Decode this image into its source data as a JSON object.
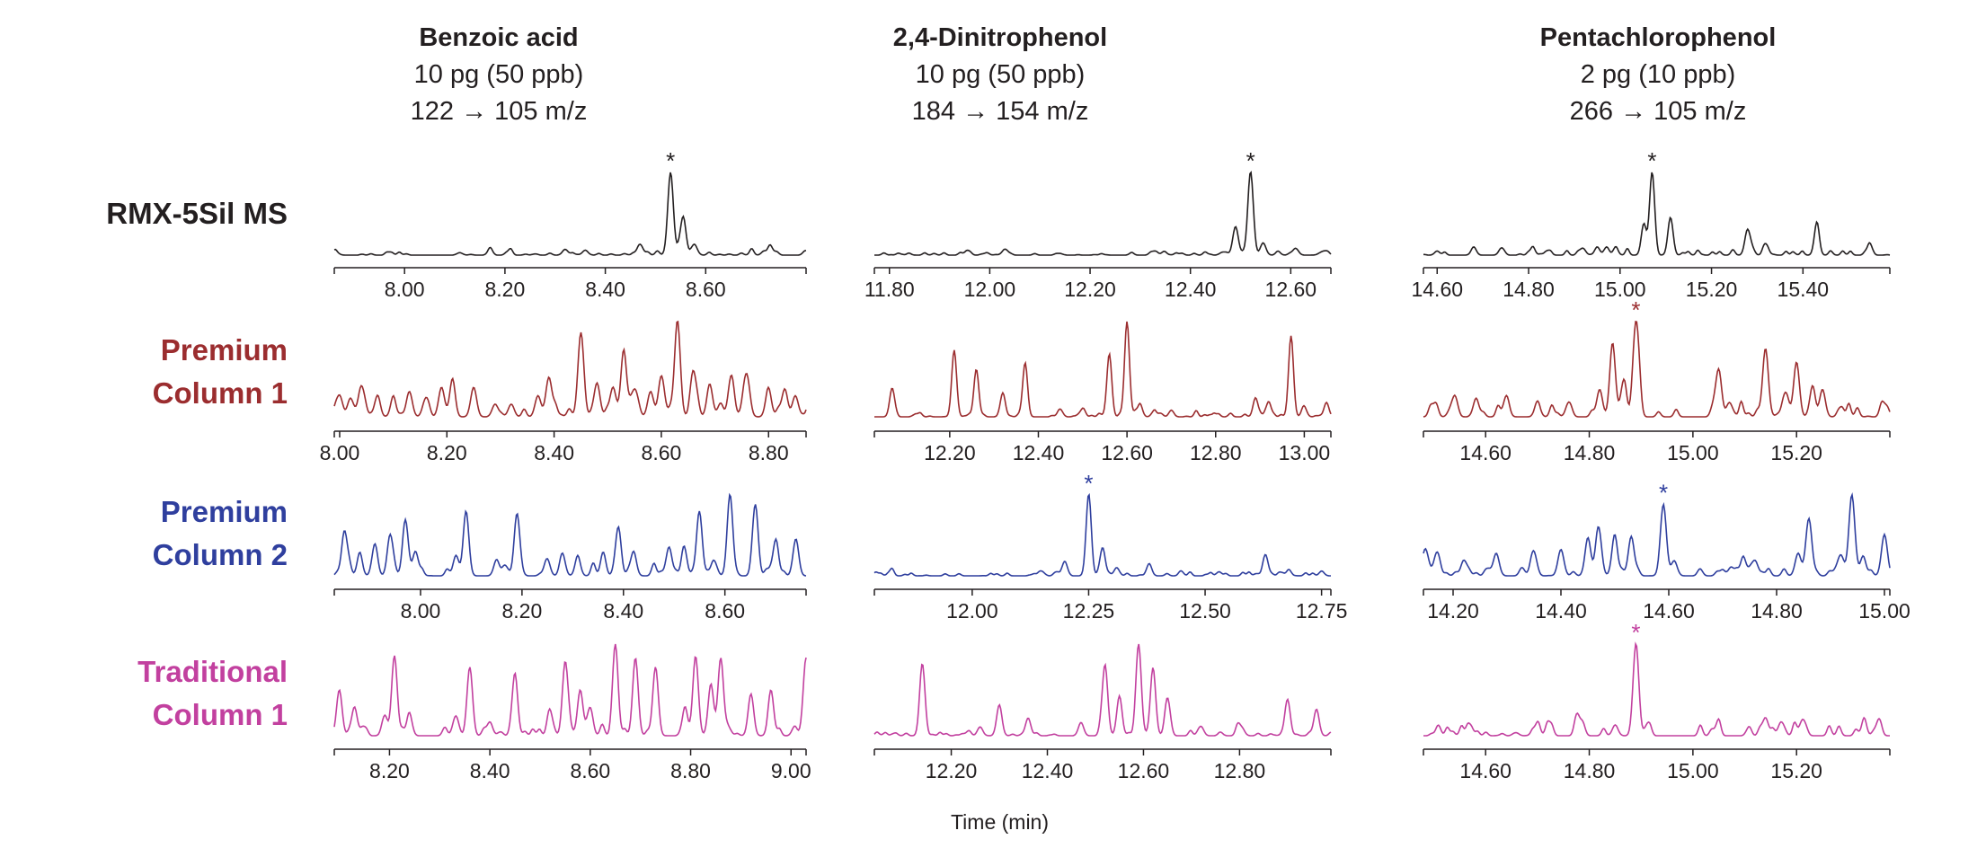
{
  "chart_data": {
    "type": "line",
    "title": "",
    "xlabel": "Time (min)",
    "columns": [
      {
        "compound": "Benzoic acid",
        "amount": "10 pg (50 ppb)",
        "transition": "122 → 105 m/z"
      },
      {
        "compound": "2,4-Dinitrophenol",
        "amount": "10 pg (50 ppb)",
        "transition": "184 → 154 m/z"
      },
      {
        "compound": "Pentachlorophenol",
        "amount": "2 pg (10 ppb)",
        "transition": "266 → 105 m/z"
      }
    ],
    "rows": [
      {
        "label_lines": [
          "RMX-5Sil MS"
        ],
        "color": "#231f20"
      },
      {
        "label_lines": [
          "Premium",
          "Column 1"
        ],
        "color": "#9b2d2f"
      },
      {
        "label_lines": [
          "Premium",
          "Column 2"
        ],
        "color": "#2f3f9e"
      },
      {
        "label_lines": [
          "Traditional",
          "Column 1"
        ],
        "color": "#c2409f"
      }
    ],
    "target_marker": "*",
    "panels": [
      [
        {
          "xlim": [
            7.86,
            8.8
          ],
          "ticks": [
            "8.00",
            "8.20",
            "8.40",
            "8.60"
          ],
          "marked_peak": 8.53,
          "noise": 0.02,
          "peaks": [
            [
              8.53,
              1.0
            ],
            [
              8.555,
              0.45
            ],
            [
              8.578,
              0.12
            ],
            [
              8.47,
              0.12
            ],
            [
              8.36,
              0.06
            ],
            [
              8.32,
              0.07
            ],
            [
              8.73,
              0.07
            ],
            [
              8.11,
              0.03
            ],
            [
              8.17,
              0.03
            ],
            [
              8.8,
              0.05
            ]
          ]
        },
        {
          "xlim": [
            11.77,
            12.68
          ],
          "ticks": [
            "11.80",
            "12.00",
            "12.20",
            "12.40",
            "12.60"
          ],
          "marked_peak": 12.52,
          "noise": 0.015,
          "peaks": [
            [
              12.52,
              1.0
            ],
            [
              12.49,
              0.35
            ],
            [
              12.545,
              0.15
            ],
            [
              12.61,
              0.08
            ],
            [
              12.03,
              0.07
            ],
            [
              12.33,
              0.05
            ],
            [
              12.66,
              0.03
            ],
            [
              12.14,
              0.02
            ]
          ]
        },
        {
          "xlim": [
            14.57,
            15.59
          ],
          "ticks": [
            "14.60",
            "14.80",
            "15.00",
            "15.20",
            "15.40"
          ],
          "marked_peak": 15.07,
          "noise": 0.03,
          "peaks": [
            [
              15.07,
              1.0
            ],
            [
              15.052,
              0.38
            ],
            [
              15.11,
              0.45
            ],
            [
              15.28,
              0.25
            ],
            [
              15.32,
              0.12
            ],
            [
              15.43,
              0.35
            ],
            [
              14.6,
              0.05
            ],
            [
              14.68,
              0.1
            ],
            [
              14.74,
              0.08
            ],
            [
              14.95,
              0.1
            ],
            [
              14.97,
              0.09
            ],
            [
              14.99,
              0.08
            ],
            [
              14.81,
              0.05
            ],
            [
              14.84,
              0.05
            ]
          ]
        }
      ],
      [
        {
          "xlim": [
            7.99,
            8.87
          ],
          "ticks": [
            "8.00",
            "8.20",
            "8.40",
            "8.60",
            "8.80"
          ],
          "marked_peak": null,
          "noise": 0.05,
          "peaks": [
            [
              8.0,
              0.25
            ],
            [
              8.02,
              0.2
            ],
            [
              8.04,
              0.35
            ],
            [
              8.07,
              0.2
            ],
            [
              8.1,
              0.15
            ],
            [
              8.13,
              0.3
            ],
            [
              8.16,
              0.2
            ],
            [
              8.19,
              0.35
            ],
            [
              8.21,
              0.3
            ],
            [
              8.25,
              0.35
            ],
            [
              8.29,
              0.15
            ],
            [
              8.32,
              0.15
            ],
            [
              8.37,
              0.25
            ],
            [
              8.39,
              0.45
            ],
            [
              8.45,
              1.0
            ],
            [
              8.48,
              0.4
            ],
            [
              8.51,
              0.35
            ],
            [
              8.53,
              0.7
            ],
            [
              8.55,
              0.3
            ],
            [
              8.58,
              0.3
            ],
            [
              8.6,
              0.45
            ],
            [
              8.63,
              1.0
            ],
            [
              8.66,
              0.4
            ],
            [
              8.69,
              0.3
            ],
            [
              8.73,
              0.45
            ],
            [
              8.76,
              0.45
            ],
            [
              8.8,
              0.3
            ],
            [
              8.83,
              0.3
            ],
            [
              8.85,
              0.25
            ],
            [
              8.88,
              0.4
            ],
            [
              8.91,
              0.6
            ]
          ]
        },
        {
          "xlim": [
            12.03,
            13.06
          ],
          "ticks": [
            "12.20",
            "12.40",
            "12.60",
            "12.80",
            "13.00"
          ],
          "marked_peak": null,
          "noise": 0.02,
          "peaks": [
            [
              12.07,
              0.3
            ],
            [
              12.21,
              0.7
            ],
            [
              12.26,
              0.5
            ],
            [
              12.32,
              0.25
            ],
            [
              12.37,
              0.55
            ],
            [
              12.45,
              0.07
            ],
            [
              12.5,
              0.08
            ],
            [
              12.56,
              0.65
            ],
            [
              12.6,
              1.0
            ],
            [
              12.63,
              0.1
            ],
            [
              12.7,
              0.07
            ],
            [
              12.89,
              0.2
            ],
            [
              12.92,
              0.1
            ],
            [
              12.97,
              0.85
            ],
            [
              13.0,
              0.1
            ],
            [
              13.05,
              0.15
            ]
          ]
        },
        {
          "xlim": [
            14.48,
            15.38
          ],
          "ticks": [
            "14.60",
            "14.80",
            "15.00",
            "15.20"
          ],
          "marked_peak": 14.89,
          "noise": 0.05,
          "peaks": [
            [
              14.5,
              0.1
            ],
            [
              14.54,
              0.15
            ],
            [
              14.58,
              0.12
            ],
            [
              14.64,
              0.2
            ],
            [
              14.7,
              0.15
            ],
            [
              14.76,
              0.15
            ],
            [
              14.82,
              0.3
            ],
            [
              14.845,
              0.75
            ],
            [
              14.865,
              0.3
            ],
            [
              14.89,
              1.0
            ],
            [
              15.05,
              0.5
            ],
            [
              15.07,
              0.15
            ],
            [
              15.14,
              0.75
            ],
            [
              15.18,
              0.25
            ],
            [
              15.2,
              0.6
            ],
            [
              15.23,
              0.25
            ],
            [
              15.25,
              0.3
            ],
            [
              15.37,
              0.1
            ]
          ]
        }
      ],
      [
        {
          "xlim": [
            7.83,
            8.76
          ],
          "ticks": [
            "8.00",
            "8.20",
            "8.40",
            "8.60"
          ],
          "marked_peak": null,
          "noise": 0.04,
          "peaks": [
            [
              7.85,
              0.55
            ],
            [
              7.88,
              0.2
            ],
            [
              7.91,
              0.35
            ],
            [
              7.94,
              0.5
            ],
            [
              7.97,
              0.6
            ],
            [
              7.99,
              0.3
            ],
            [
              8.07,
              0.25
            ],
            [
              8.09,
              0.75
            ],
            [
              8.15,
              0.2
            ],
            [
              8.19,
              0.75
            ],
            [
              8.25,
              0.2
            ],
            [
              8.28,
              0.25
            ],
            [
              8.31,
              0.2
            ],
            [
              8.36,
              0.2
            ],
            [
              8.39,
              0.6
            ],
            [
              8.42,
              0.3
            ],
            [
              8.49,
              0.35
            ],
            [
              8.52,
              0.3
            ],
            [
              8.55,
              0.75
            ],
            [
              8.58,
              0.15
            ],
            [
              8.61,
              1.0
            ],
            [
              8.66,
              0.85
            ],
            [
              8.7,
              0.4
            ],
            [
              8.74,
              0.45
            ]
          ]
        },
        {
          "xlim": [
            11.79,
            12.77
          ],
          "ticks": [
            "12.00",
            "12.25",
            "12.50",
            "12.75"
          ],
          "marked_peak": 12.25,
          "noise": 0.025,
          "peaks": [
            [
              12.25,
              1.0
            ],
            [
              12.28,
              0.35
            ],
            [
              12.31,
              0.1
            ],
            [
              12.2,
              0.12
            ],
            [
              12.15,
              0.05
            ],
            [
              12.38,
              0.15
            ],
            [
              12.53,
              0.05
            ],
            [
              12.63,
              0.25
            ],
            [
              12.68,
              0.05
            ],
            [
              12.75,
              0.05
            ]
          ]
        },
        {
          "xlim": [
            14.145,
            15.01
          ],
          "ticks": [
            "14.20",
            "14.40",
            "14.60",
            "14.80",
            "15.00"
          ],
          "marked_peak": 14.59,
          "noise": 0.04,
          "peaks": [
            [
              14.15,
              0.3
            ],
            [
              14.17,
              0.3
            ],
            [
              14.22,
              0.2
            ],
            [
              14.28,
              0.3
            ],
            [
              14.35,
              0.3
            ],
            [
              14.4,
              0.35
            ],
            [
              14.45,
              0.45
            ],
            [
              14.47,
              0.6
            ],
            [
              14.5,
              0.4
            ],
            [
              14.53,
              0.45
            ],
            [
              14.59,
              0.95
            ],
            [
              14.61,
              0.2
            ],
            [
              14.74,
              0.15
            ],
            [
              14.76,
              0.2
            ],
            [
              14.84,
              0.3
            ],
            [
              14.86,
              0.75
            ],
            [
              14.92,
              0.25
            ],
            [
              14.94,
              1.0
            ],
            [
              14.96,
              0.2
            ],
            [
              15.0,
              0.55
            ]
          ]
        }
      ],
      [
        {
          "xlim": [
            8.09,
            9.03
          ],
          "ticks": [
            "8.20",
            "8.40",
            "8.60",
            "8.80",
            "9.00"
          ],
          "marked_peak": null,
          "noise": 0.04,
          "peaks": [
            [
              8.1,
              0.5
            ],
            [
              8.13,
              0.3
            ],
            [
              8.19,
              0.15
            ],
            [
              8.21,
              0.85
            ],
            [
              8.24,
              0.2
            ],
            [
              8.33,
              0.15
            ],
            [
              8.36,
              0.75
            ],
            [
              8.4,
              0.15
            ],
            [
              8.45,
              0.6
            ],
            [
              8.52,
              0.2
            ],
            [
              8.55,
              0.8
            ],
            [
              8.58,
              0.5
            ],
            [
              8.6,
              0.3
            ],
            [
              8.65,
              1.0
            ],
            [
              8.69,
              0.85
            ],
            [
              8.73,
              0.75
            ],
            [
              8.79,
              0.2
            ],
            [
              8.81,
              0.85
            ],
            [
              8.84,
              0.5
            ],
            [
              8.86,
              0.85
            ],
            [
              8.92,
              0.45
            ],
            [
              8.96,
              0.5
            ],
            [
              9.03,
              0.85
            ]
          ]
        },
        {
          "xlim": [
            12.04,
            12.99
          ],
          "ticks": [
            "12.20",
            "12.40",
            "12.60",
            "12.80"
          ],
          "marked_peak": null,
          "noise": 0.02,
          "peaks": [
            [
              12.14,
              0.8
            ],
            [
              12.26,
              0.1
            ],
            [
              12.3,
              0.35
            ],
            [
              12.36,
              0.2
            ],
            [
              12.47,
              0.15
            ],
            [
              12.52,
              0.8
            ],
            [
              12.55,
              0.45
            ],
            [
              12.59,
              1.0
            ],
            [
              12.62,
              0.75
            ],
            [
              12.65,
              0.4
            ],
            [
              12.72,
              0.1
            ],
            [
              12.8,
              0.1
            ],
            [
              12.9,
              0.35
            ],
            [
              12.96,
              0.3
            ]
          ]
        },
        {
          "xlim": [
            14.48,
            15.38
          ],
          "ticks": [
            "14.60",
            "14.80",
            "15.00",
            "15.20"
          ],
          "marked_peak": 14.89,
          "noise": 0.06,
          "peaks": [
            [
              14.89,
              1.0
            ],
            [
              15.14,
              0.2
            ],
            [
              15.17,
              0.15
            ],
            [
              15.21,
              0.12
            ],
            [
              15.33,
              0.1
            ],
            [
              14.85,
              0.12
            ],
            [
              14.78,
              0.08
            ],
            [
              14.7,
              0.08
            ]
          ]
        }
      ]
    ]
  }
}
